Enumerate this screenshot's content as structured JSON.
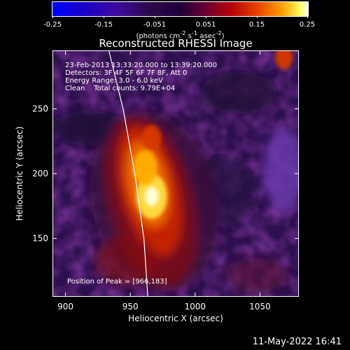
{
  "colorbar": {
    "ticks": [
      "-0.25",
      "-0.15",
      "-0.051",
      "0.051",
      "0.15",
      "0.25"
    ],
    "units_prefix": "(photons cm",
    "units_exp1": "-2",
    "units_s": " s",
    "units_exp2": "-1",
    "units_asec": " asec",
    "units_exp3": "-2",
    "units_suffix": ")"
  },
  "image": {
    "title": "Reconstructed RHESSI Image",
    "time_range": "23-Feb-2013 13:33:20.000 to 13:39:20.000",
    "detectors": "Detectors: 3F 4F 5F 6F 7F 8F, Att 0",
    "energy_range": "Energy Range: 3.0 - 6.0 keV",
    "algorithm_counts": "Clean    Total counts: 9.79E+04",
    "peak": "Position of Peak = [966,183]",
    "footer_date": "11-May-2022 16:41"
  },
  "chart_data": {
    "type": "heatmap",
    "title": "Reconstructed RHESSI Image",
    "xlabel": "Heliocentric X (arcsec)",
    "ylabel": "Heliocentric Y (arcsec)",
    "xlim": [
      890,
      1080
    ],
    "ylim": [
      105,
      295
    ],
    "xticks": [
      900,
      950,
      1000,
      1050
    ],
    "yticks": [
      150,
      200,
      250
    ],
    "peak": [
      966,
      183
    ],
    "colorbar_range": [
      -0.25,
      0.25
    ],
    "colorbar_ticks": [
      -0.25,
      -0.15,
      -0.051,
      0.051,
      0.15,
      0.25
    ],
    "limb_curve": [
      [
        933,
        295
      ],
      [
        944,
        250
      ],
      [
        953,
        200
      ],
      [
        960,
        150
      ],
      [
        963,
        105
      ]
    ],
    "sources": [
      {
        "x": 966,
        "y": 183,
        "intensity": 0.25
      },
      {
        "x": 961,
        "y": 205,
        "intensity": 0.17
      },
      {
        "x": 966,
        "y": 228,
        "intensity": 0.1
      },
      {
        "x": 1068,
        "y": 290,
        "intensity": 0.08
      }
    ]
  }
}
